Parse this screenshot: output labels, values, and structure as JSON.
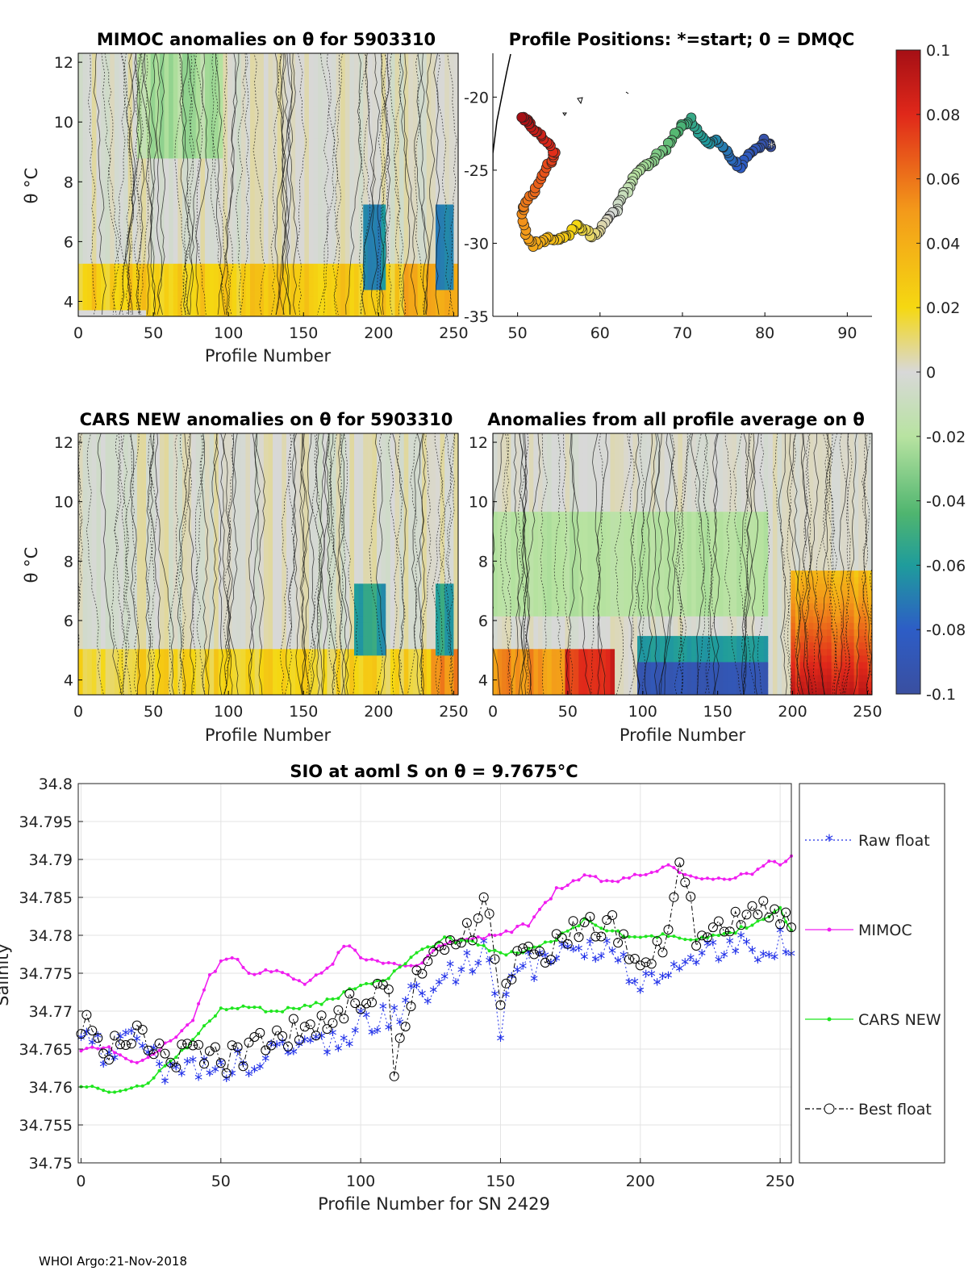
{
  "footer": "WHOI Argo:21-Nov-2018",
  "colors": {
    "raw": "#1f2fe8",
    "mimoc": "#f01ef0",
    "cars": "#1fe61f",
    "best": "#000000"
  },
  "chart_data": [
    {
      "type": "heatmap",
      "title": "MIMOC anomalies on θ  for 5903310",
      "xlabel": "Profile Number",
      "ylabel": "θ °C",
      "xticks": [
        "0",
        "50",
        "100",
        "150",
        "200",
        "250"
      ],
      "yticks": [
        "4",
        "6",
        "8",
        "10",
        "12"
      ],
      "xlim": [
        0,
        253
      ],
      "ylim": [
        3.5,
        12.3
      ]
    },
    {
      "type": "scatter",
      "title": "Profile Positions: *=start; 0 = DMQC",
      "xticks": [
        "50",
        "60",
        "70",
        "80",
        "90"
      ],
      "yticks": [
        "-20",
        "-25",
        "-30",
        "-35"
      ],
      "xlim": [
        47,
        93
      ],
      "ylim": [
        -35,
        -17
      ],
      "track_lon": [
        80.8,
        80.0,
        79.0,
        78.0,
        77.0,
        76.0,
        75.0,
        74.0,
        73.0,
        72.0,
        71.0,
        70.0,
        69.0,
        68.0,
        67.0,
        66.0,
        65.0,
        64.0,
        63.5,
        62.5,
        62.0,
        61.0,
        60.0,
        59.0,
        58.0,
        57.0,
        56.0,
        55.0,
        54.0,
        53.0,
        52.0,
        51.0,
        50.5,
        51.0,
        52.0,
        53.0,
        54.0,
        54.5,
        53.5,
        52.5,
        51.5,
        51.0,
        50.5
      ],
      "track_lat": [
        -23.4,
        -23.0,
        -23.5,
        -23.8,
        -24.9,
        -24.2,
        -23.5,
        -22.9,
        -23.2,
        -22.5,
        -21.5,
        -22.0,
        -22.6,
        -23.5,
        -24.0,
        -24.6,
        -24.8,
        -25.6,
        -26.3,
        -27.0,
        -27.8,
        -28.2,
        -29.0,
        -29.5,
        -29.0,
        -28.8,
        -29.5,
        -29.8,
        -29.7,
        -29.8,
        -30.1,
        -29.4,
        -28.0,
        -27.3,
        -26.5,
        -25.3,
        -24.5,
        -23.8,
        -23.0,
        -22.4,
        -21.8,
        -21.6,
        -21.4
      ],
      "start": [
        80.8,
        -23.4
      ]
    },
    {
      "type": "colorbar",
      "ticks": [
        "0.1",
        "0.08",
        "0.06",
        "0.04",
        "0.02",
        "0",
        "-0.02",
        "-0.04",
        "-0.06",
        "-0.08",
        "-0.1"
      ],
      "range": [
        -0.1,
        0.1
      ]
    },
    {
      "type": "heatmap",
      "title": "CARS NEW anomalies on θ for 5903310",
      "xlabel": "Profile Number",
      "ylabel": "θ °C",
      "xticks": [
        "0",
        "50",
        "100",
        "150",
        "200",
        "250"
      ],
      "yticks": [
        "4",
        "6",
        "8",
        "10",
        "12"
      ],
      "xlim": [
        0,
        253
      ],
      "ylim": [
        3.5,
        12.3
      ]
    },
    {
      "type": "heatmap",
      "title": "Anomalies from all profile average on θ",
      "xlabel": "Profile Number",
      "xticks": [
        "0",
        "50",
        "100",
        "150",
        "200",
        "250"
      ],
      "yticks": [
        "4",
        "6",
        "8",
        "10",
        "12"
      ],
      "xlim": [
        0,
        253
      ],
      "ylim": [
        3.5,
        12.3
      ]
    },
    {
      "type": "line",
      "title": "SIO at aoml S on θ = 9.7675°C",
      "xlabel": "Profile Number for SN 2429",
      "ylabel": "Salinity",
      "xlim": [
        -1,
        254
      ],
      "ylim": [
        34.75,
        34.8
      ],
      "xticks": [
        "0",
        "50",
        "100",
        "150",
        "200",
        "250"
      ],
      "yticks": [
        "34.75",
        "34.755",
        "34.76",
        "34.765",
        "34.77",
        "34.775",
        "34.78",
        "34.785",
        "34.79",
        "34.795",
        "34.8"
      ],
      "legend": "outside-right",
      "series": [
        {
          "name": "Raw float",
          "x": [
            0,
            10,
            20,
            30,
            40,
            50,
            60,
            70,
            80,
            90,
            100,
            110,
            120,
            130,
            140,
            145,
            150,
            155,
            160,
            170,
            180,
            190,
            200,
            210,
            220,
            230,
            240,
            250,
            254
          ],
          "values": [
            34.7675,
            34.764,
            34.766,
            34.7615,
            34.7625,
            34.762,
            34.763,
            34.765,
            34.7655,
            34.766,
            34.768,
            34.769,
            34.772,
            34.7735,
            34.776,
            34.7795,
            34.7675,
            34.7745,
            34.7755,
            34.7765,
            34.7785,
            34.7775,
            34.7725,
            34.7745,
            34.7765,
            34.7775,
            34.778,
            34.7785,
            34.779
          ]
        },
        {
          "name": "MIMOC",
          "x": [
            0,
            10,
            20,
            30,
            40,
            45,
            50,
            55,
            60,
            70,
            80,
            90,
            95,
            100,
            110,
            120,
            130,
            140,
            150,
            160,
            170,
            180,
            190,
            200,
            210,
            220,
            230,
            240,
            245,
            250,
            254
          ],
          "values": [
            34.765,
            34.765,
            34.763,
            34.7655,
            34.7685,
            34.774,
            34.7765,
            34.777,
            34.775,
            34.7755,
            34.7735,
            34.7765,
            34.779,
            34.777,
            34.7765,
            34.776,
            34.779,
            34.7795,
            34.78,
            34.7815,
            34.786,
            34.788,
            34.787,
            34.788,
            34.789,
            34.7875,
            34.7875,
            34.788,
            34.7895,
            34.7895,
            34.7905
          ]
        },
        {
          "name": "CARS NEW",
          "x": [
            0,
            10,
            20,
            25,
            30,
            40,
            50,
            60,
            70,
            80,
            90,
            100,
            110,
            120,
            130,
            140,
            150,
            160,
            170,
            180,
            190,
            200,
            210,
            220,
            230,
            240,
            250,
            254
          ],
          "values": [
            34.76,
            34.7595,
            34.76,
            34.761,
            34.7625,
            34.766,
            34.7705,
            34.7705,
            34.77,
            34.7705,
            34.7715,
            34.7735,
            34.7745,
            34.7775,
            34.7795,
            34.779,
            34.7775,
            34.778,
            34.7795,
            34.782,
            34.7805,
            34.7795,
            34.78,
            34.7795,
            34.78,
            34.7815,
            34.7835,
            34.7805
          ]
        },
        {
          "name": "Best float",
          "x": [
            0,
            10,
            20,
            30,
            40,
            50,
            60,
            70,
            80,
            90,
            100,
            110,
            112,
            120,
            130,
            140,
            145,
            150,
            155,
            160,
            170,
            180,
            190,
            200,
            210,
            215,
            220,
            230,
            240,
            250,
            254
          ],
          "values": [
            34.769,
            34.7655,
            34.767,
            34.763,
            34.7645,
            34.763,
            34.765,
            34.7665,
            34.768,
            34.769,
            34.7715,
            34.772,
            34.761,
            34.7755,
            34.7775,
            34.781,
            34.7845,
            34.7695,
            34.7765,
            34.7775,
            34.7785,
            34.781,
            34.7815,
            34.7745,
            34.7805,
            34.7905,
            34.7785,
            34.7805,
            34.7825,
            34.783,
            34.7815
          ]
        }
      ]
    }
  ]
}
